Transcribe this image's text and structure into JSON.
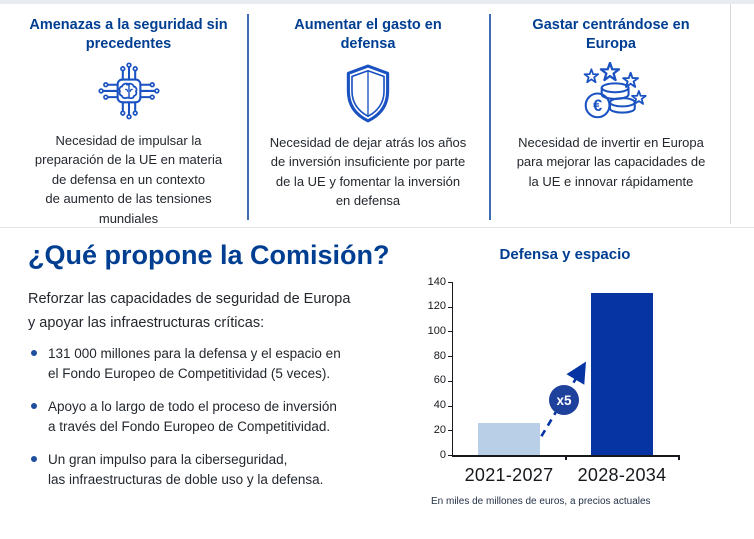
{
  "theme": {
    "heading_blue": "#003e92",
    "icon_blue": "#1a52c2",
    "divider_blue": "#3e6cb2",
    "body_text": "#23282e",
    "top_strip_gray": "#e8ebef",
    "bullet_blue": "#1d4f9f"
  },
  "top_cards": [
    {
      "icon": "ai-chip-brain-icon",
      "title": "Amenazas a la seguridad sin\nprecedentes",
      "text": "Necesidad de impulsar la\npreparación de la UE en materia\nde defensa en un contexto\nde aumento de las tensiones\nmundiales"
    },
    {
      "icon": "shield-icon",
      "title": "Aumentar el gasto en\ndefensa",
      "text": "Necesidad de dejar atrás los años\nde inversión insuficiente por parte\nde la UE y fomentar la inversión\nen defensa"
    },
    {
      "icon": "euro-coins-stars-icon",
      "title": "Gastar centrándose en\nEuropa",
      "text": "Necesidad de invertir en Europa\npara mejorar las capacidades de\nla UE e innovar rápidamente"
    }
  ],
  "proposal": {
    "heading": "¿Qué propone la Comisión?",
    "intro": "Reforzar las capacidades de seguridad de Europa\ny apoyar las infraestructuras críticas:",
    "bullets": [
      "131 000 millones para la defensa y el espacio en\nel Fondo Europeo de Competitividad (5 veces).",
      "Apoyo a lo largo de todo el proceso de inversión\na través del Fondo Europeo de Competitividad.",
      "Un gran impulso para la ciberseguridad,\nlas infraestructuras de doble uso y la defensa."
    ]
  },
  "chart_data": {
    "type": "bar",
    "title": "Defensa y espacio",
    "categories": [
      "2021-2027",
      "2028-2034"
    ],
    "values": [
      26,
      131
    ],
    "bar_colors": [
      "#b9cfe8",
      "#0634a3"
    ],
    "ylim": [
      0,
      140
    ],
    "yticks": [
      0,
      20,
      40,
      60,
      80,
      100,
      120,
      140
    ],
    "annotation": "x5",
    "annotation_color": "#1e419c",
    "caption": "En miles de millones de euros, a precios actuales",
    "grid": false,
    "legend": false
  }
}
